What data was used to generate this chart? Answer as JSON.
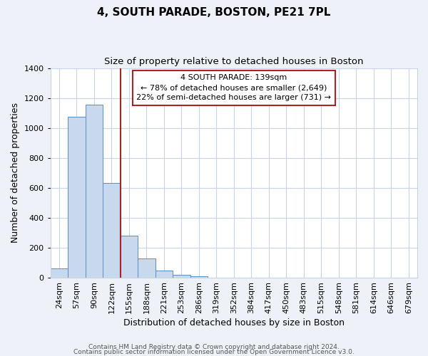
{
  "title": "4, SOUTH PARADE, BOSTON, PE21 7PL",
  "subtitle": "Size of property relative to detached houses in Boston",
  "xlabel": "Distribution of detached houses by size in Boston",
  "ylabel": "Number of detached properties",
  "categories": [
    "24sqm",
    "57sqm",
    "90sqm",
    "122sqm",
    "155sqm",
    "188sqm",
    "221sqm",
    "253sqm",
    "286sqm",
    "319sqm",
    "352sqm",
    "384sqm",
    "417sqm",
    "450sqm",
    "483sqm",
    "515sqm",
    "548sqm",
    "581sqm",
    "614sqm",
    "646sqm",
    "679sqm"
  ],
  "values": [
    65,
    1075,
    1155,
    635,
    280,
    130,
    48,
    20,
    10,
    0,
    0,
    0,
    0,
    0,
    0,
    0,
    0,
    0,
    0,
    0,
    0
  ],
  "bar_color": "#c8d9ee",
  "bar_edge_color": "#5b8ec4",
  "marker_label": "4 SOUTH PARADE: 139sqm",
  "pct_smaller": 78,
  "count_smaller": 2649,
  "pct_larger": 22,
  "count_larger": 731,
  "vline_color": "#aa2222",
  "annotation_box_edge": "#aa2222",
  "ylim": [
    0,
    1400
  ],
  "yticks": [
    0,
    200,
    400,
    600,
    800,
    1000,
    1200,
    1400
  ],
  "footer_line1": "Contains HM Land Registry data © Crown copyright and database right 2024.",
  "footer_line2": "Contains public sector information licensed under the Open Government Licence v3.0.",
  "bg_color": "#eef2f8",
  "plot_bg_color": "#ffffff",
  "grid_color": "#c8d4e8",
  "title_fontsize": 11,
  "subtitle_fontsize": 9.5,
  "axis_label_fontsize": 9,
  "tick_fontsize": 8,
  "footer_fontsize": 6.5,
  "ann_fontsize": 8
}
